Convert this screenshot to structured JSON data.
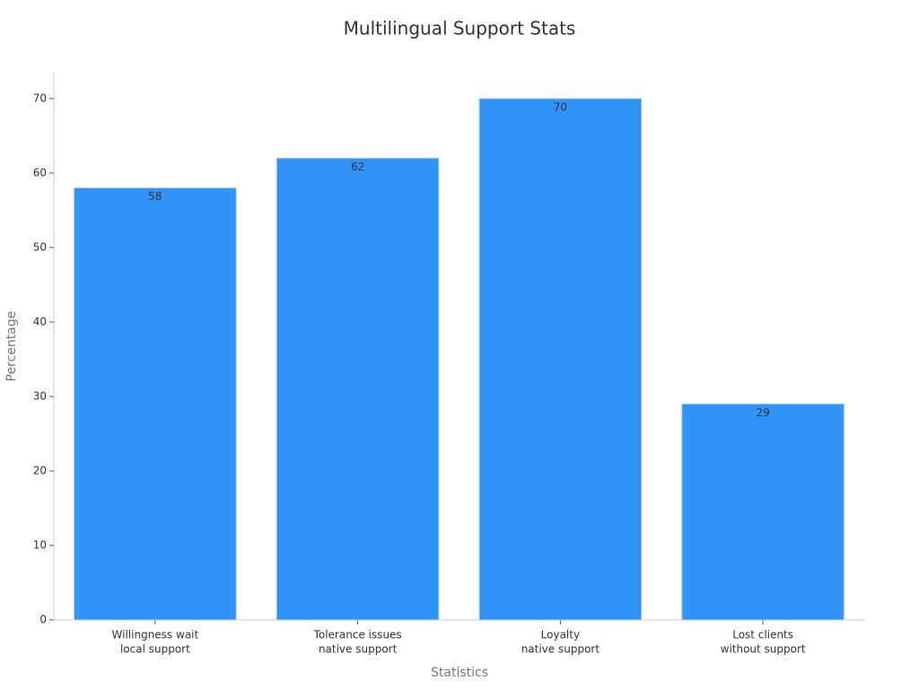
{
  "chart_data": {
    "type": "bar",
    "title": "Multilingual Support Stats",
    "x_label": "Statistics",
    "y_label": "Percentage",
    "categories": [
      [
        "Willingness wait",
        "local support"
      ],
      [
        "Tolerance issues",
        "native support"
      ],
      [
        "Loyalty",
        "native support"
      ],
      [
        "Lost clients",
        "without support"
      ]
    ],
    "values": [
      58,
      62,
      70,
      29
    ],
    "color": "#3192f7",
    "ylim": [
      0,
      73.6
    ],
    "yticks": [
      0,
      10,
      20,
      30,
      40,
      50,
      60,
      70
    ],
    "grid": false
  }
}
